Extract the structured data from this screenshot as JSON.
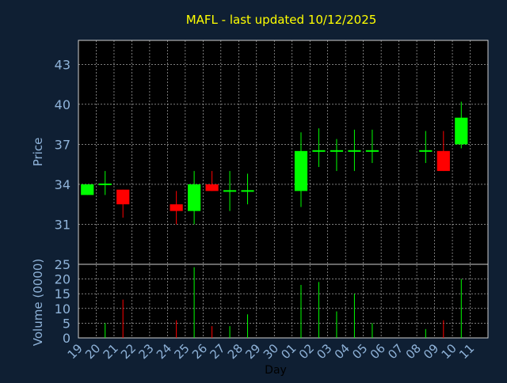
{
  "chart_data": {
    "type": "candlestick",
    "title": "MAFL - last updated 10/12/2025",
    "xlabel": "Day",
    "price_panel": {
      "ylabel": "Price",
      "yticks": [
        31,
        34,
        37,
        40,
        43
      ],
      "ylim": [
        28,
        44.8
      ]
    },
    "volume_panel": {
      "ylabel": "Volume (0000)",
      "yticks": [
        0,
        5,
        10,
        15,
        20,
        25
      ],
      "ylim": [
        0,
        25
      ]
    },
    "x_ticks": [
      "19",
      "20",
      "21",
      "22",
      "23",
      "24",
      "25",
      "26",
      "27",
      "28",
      "29",
      "30",
      "01",
      "02",
      "03",
      "04",
      "05",
      "06",
      "07",
      "08",
      "09",
      "10",
      "11"
    ],
    "grid": true,
    "colors": {
      "background": "#0f1f33",
      "plot_background": "#000000",
      "title": "#ffff00",
      "axis_text": "#8fb3d9",
      "grid": "#c8c8c8",
      "up": "#00ff00",
      "down": "#ff0000",
      "doji": "#00ff00"
    },
    "candles": [
      {
        "day": "19",
        "open": 33.2,
        "high": 34.0,
        "low": 33.2,
        "close": 34.0,
        "volume": 0
      },
      {
        "day": "20",
        "open": 34.0,
        "high": 35.0,
        "low": 33.2,
        "close": 34.0,
        "volume": 5
      },
      {
        "day": "21",
        "open": 33.6,
        "high": 33.6,
        "low": 31.5,
        "close": 32.5,
        "volume": 13
      },
      {
        "day": "24",
        "open": 32.5,
        "high": 33.5,
        "low": 31.0,
        "close": 32.0,
        "volume": 6
      },
      {
        "day": "25",
        "open": 32.0,
        "high": 35.0,
        "low": 31.0,
        "close": 34.0,
        "volume": 24
      },
      {
        "day": "26",
        "open": 34.0,
        "high": 35.0,
        "low": 33.5,
        "close": 33.5,
        "volume": 4
      },
      {
        "day": "27",
        "open": 33.5,
        "high": 35.0,
        "low": 32.0,
        "close": 33.5,
        "volume": 4
      },
      {
        "day": "28",
        "open": 33.5,
        "high": 34.8,
        "low": 32.5,
        "close": 33.5,
        "volume": 8
      },
      {
        "day": "01",
        "open": 33.5,
        "high": 37.9,
        "low": 32.3,
        "close": 36.5,
        "volume": 18
      },
      {
        "day": "02",
        "open": 36.5,
        "high": 38.2,
        "low": 35.3,
        "close": 36.5,
        "volume": 19
      },
      {
        "day": "03",
        "open": 36.5,
        "high": 37.4,
        "low": 35.0,
        "close": 36.5,
        "volume": 9
      },
      {
        "day": "04",
        "open": 36.5,
        "high": 38.1,
        "low": 35.0,
        "close": 36.5,
        "volume": 15
      },
      {
        "day": "05",
        "open": 36.5,
        "high": 38.1,
        "low": 35.6,
        "close": 36.5,
        "volume": 5
      },
      {
        "day": "08",
        "open": 36.5,
        "high": 38.0,
        "low": 35.6,
        "close": 36.5,
        "volume": 3
      },
      {
        "day": "09",
        "open": 36.5,
        "high": 38.0,
        "low": 35.0,
        "close": 35.0,
        "volume": 6
      },
      {
        "day": "10",
        "open": 37.0,
        "high": 40.2,
        "low": 36.7,
        "close": 39.0,
        "volume": 20
      }
    ]
  }
}
